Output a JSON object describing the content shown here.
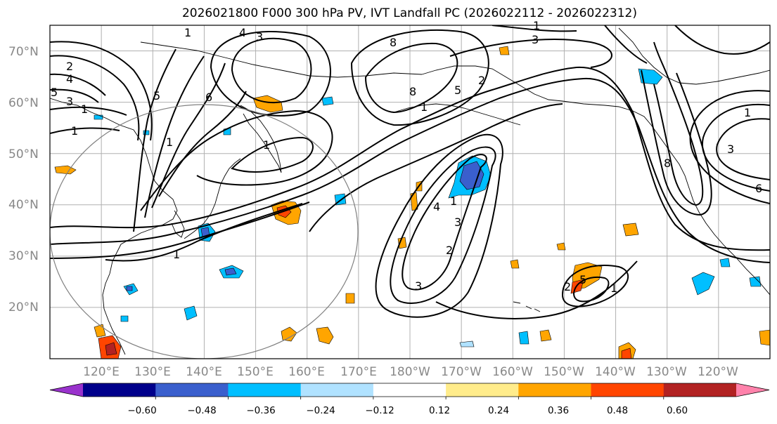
{
  "title": "2026021800 F000 300 hPa PV, IVT Landfall PC (2026022112 - 2026022312)",
  "lat_labels": [
    "70°N",
    "60°N",
    "50°N",
    "40°N",
    "30°N",
    "20°N"
  ],
  "lon_labels": [
    "120°E",
    "130°E",
    "140°E",
    "150°E",
    "160°E",
    "170°E",
    "180°W",
    "170°W",
    "160°W",
    "150°W",
    "140°W",
    "130°W",
    "120°W"
  ],
  "colorbar": {
    "colors": [
      "#9932cc",
      "#00008b",
      "#3a5fcd",
      "#00bfff",
      "#b0e2ff",
      "#ffffff",
      "#ffec8b",
      "#ffa500",
      "#ff4500",
      "#b22222",
      "#ff82ab"
    ],
    "tick_labels": [
      "−0.60",
      "−0.48",
      "−0.36",
      "−0.24",
      "−0.12",
      "0.12",
      "0.24",
      "0.36",
      "0.48",
      "0.60"
    ]
  },
  "contour_labels": [
    "1",
    "1",
    "2",
    "4",
    "5",
    "3",
    "1",
    "1",
    "5",
    "1",
    "6",
    "4",
    "1",
    "3",
    "3",
    "1",
    "2",
    "3",
    "8",
    "8",
    "4",
    "5",
    "2",
    "1",
    "3",
    "2",
    "5",
    "1",
    "1",
    "3",
    "6",
    "8",
    "1"
  ],
  "extent": {
    "lon": [
      110,
      250
    ],
    "lat": [
      10,
      75
    ]
  },
  "grid_lons_deg": [
    120,
    130,
    140,
    150,
    160,
    170,
    180,
    190,
    200,
    210,
    220,
    230,
    240
  ],
  "grid_lats_deg": [
    20,
    30,
    40,
    50,
    60,
    70
  ],
  "reference_circle": {
    "center_lon": 140,
    "center_lat": 35,
    "radius_deg": 30
  }
}
